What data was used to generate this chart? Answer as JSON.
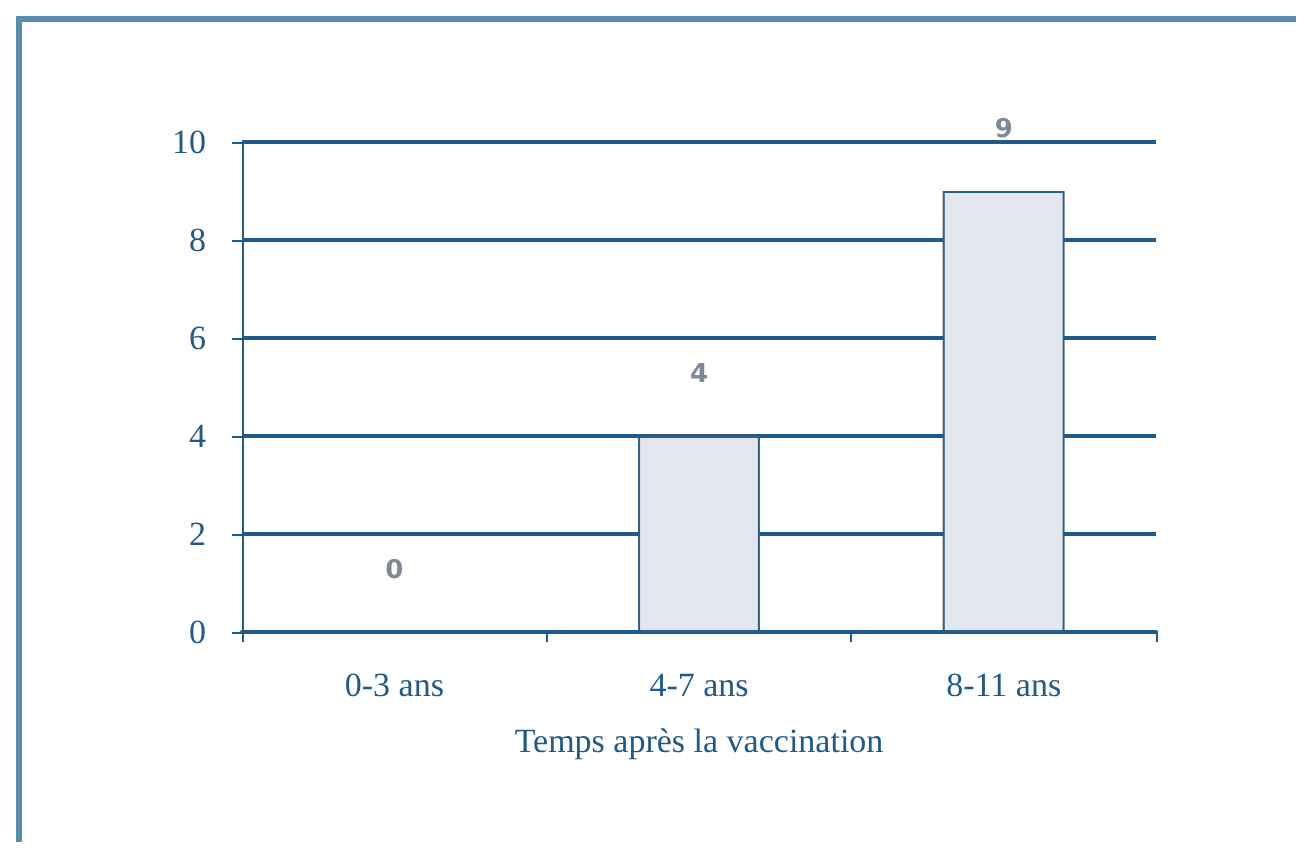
{
  "chart_data": {
    "type": "bar",
    "xlabel": "Temps après la vaccination",
    "categories": [
      "0-3 ans",
      "4-7 ans",
      "8-11 ans"
    ],
    "values": [
      0,
      4,
      9
    ],
    "color": "#e4e6ee",
    "ylim": [
      0,
      10
    ],
    "yticks": [
      0,
      2,
      4,
      6,
      8,
      10
    ],
    "grid": "y",
    "data_labels": true
  }
}
